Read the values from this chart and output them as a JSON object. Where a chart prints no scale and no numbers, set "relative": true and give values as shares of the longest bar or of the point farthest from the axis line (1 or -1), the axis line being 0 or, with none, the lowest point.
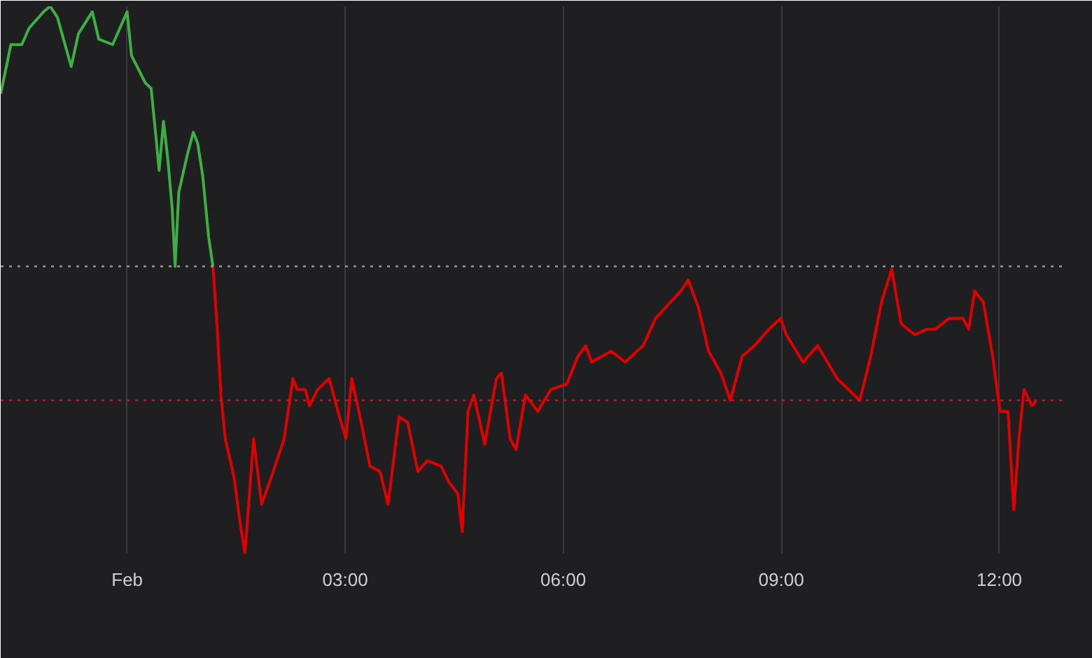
{
  "chart_data": {
    "type": "line",
    "relative": true,
    "xlim": [
      -1.74,
      12.9
    ],
    "xticks": [
      {
        "value": 0,
        "label": "Feb"
      },
      {
        "value": 3,
        "label": "03:00"
      },
      {
        "value": 6,
        "label": "06:00"
      },
      {
        "value": 9,
        "label": "09:00"
      },
      {
        "value": 12,
        "label": "12:00"
      }
    ],
    "grid": "x",
    "ref_lines": [
      {
        "axis": "y",
        "value": 0.525,
        "color": "#9a9a9a",
        "line_style": "dotted"
      },
      {
        "axis": "y",
        "value": 0.28,
        "color": "#c01818",
        "line_style": "dotted"
      }
    ],
    "series": [
      {
        "color": "#3cb043",
        "x": [
          -1.74,
          -1.6,
          -1.45,
          -1.35,
          -1.15,
          -1.06,
          -0.96,
          -0.77,
          -0.67,
          -0.48,
          -0.39,
          -0.2,
          0.0,
          0.06,
          0.25,
          0.33,
          0.39,
          0.44,
          0.5,
          0.56,
          0.62,
          0.66,
          0.71,
          0.83,
          0.91,
          0.97,
          1.04,
          1.12,
          1.18
        ],
        "values": [
          0.84,
          0.93,
          0.93,
          0.96,
          0.99,
          1.0,
          0.98,
          0.89,
          0.95,
          0.99,
          0.94,
          0.93,
          0.99,
          0.91,
          0.86,
          0.85,
          0.77,
          0.7,
          0.79,
          0.72,
          0.63,
          0.525,
          0.66,
          0.73,
          0.77,
          0.75,
          0.69,
          0.58,
          0.525
        ]
      },
      {
        "color": "#e00000",
        "x": [
          1.18,
          1.24,
          1.29,
          1.35,
          1.47,
          1.55,
          1.62,
          1.74,
          1.85,
          2.01,
          2.16,
          2.28,
          2.34,
          2.45,
          2.51,
          2.62,
          2.78,
          2.9,
          3.01,
          3.09,
          3.22,
          3.34,
          3.48,
          3.59,
          3.74,
          3.86,
          4.0,
          4.13,
          4.32,
          4.43,
          4.55,
          4.61,
          4.69,
          4.77,
          4.92,
          5.08,
          5.15,
          5.27,
          5.35,
          5.48,
          5.65,
          5.83,
          6.05,
          6.2,
          6.31,
          6.39,
          6.66,
          6.85,
          7.1,
          7.27,
          7.41,
          7.62,
          7.72,
          7.86,
          8.0,
          8.17,
          8.3,
          8.46,
          8.63,
          8.83,
          8.99,
          9.07,
          9.3,
          9.5,
          9.77,
          10.08,
          10.23,
          10.38,
          10.52,
          10.65,
          10.84,
          11.0,
          11.12,
          11.31,
          11.5,
          11.58,
          11.66,
          11.78,
          11.91,
          12.01,
          12.12,
          12.2,
          12.27,
          12.34,
          12.45,
          12.51
        ],
        "values": [
          0.525,
          0.41,
          0.29,
          0.21,
          0.14,
          0.06,
          0.0,
          0.21,
          0.09,
          0.15,
          0.21,
          0.32,
          0.3,
          0.3,
          0.27,
          0.3,
          0.32,
          0.26,
          0.21,
          0.32,
          0.24,
          0.16,
          0.15,
          0.09,
          0.25,
          0.24,
          0.15,
          0.17,
          0.16,
          0.13,
          0.11,
          0.04,
          0.26,
          0.29,
          0.2,
          0.32,
          0.33,
          0.21,
          0.19,
          0.29,
          0.26,
          0.3,
          0.31,
          0.36,
          0.38,
          0.35,
          0.37,
          0.35,
          0.38,
          0.43,
          0.45,
          0.48,
          0.5,
          0.45,
          0.37,
          0.33,
          0.28,
          0.36,
          0.38,
          0.41,
          0.43,
          0.4,
          0.35,
          0.38,
          0.32,
          0.28,
          0.36,
          0.46,
          0.52,
          0.42,
          0.4,
          0.41,
          0.41,
          0.43,
          0.43,
          0.41,
          0.48,
          0.46,
          0.36,
          0.26,
          0.26,
          0.08,
          0.21,
          0.3,
          0.27,
          0.28
        ]
      }
    ]
  }
}
